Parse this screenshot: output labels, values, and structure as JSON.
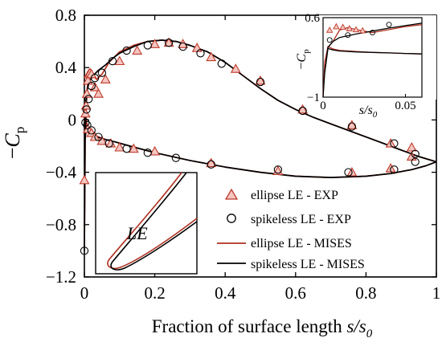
{
  "chart_data": {
    "type": "scatter",
    "xlabel": "Fraction of surface length s/s0",
    "xlabel_parts": [
      "Fraction of surface length ",
      "s/s",
      "0"
    ],
    "ylabel": "-Cp",
    "ylabel_parts": [
      "−",
      "C",
      "p"
    ],
    "xlim": [
      0,
      1
    ],
    "ylim": [
      -1.2,
      0.8
    ],
    "xticks": [
      "0",
      "0.2",
      "0.4",
      "0.6",
      "0.8",
      "1"
    ],
    "yticks": [
      "0.8",
      "0.4",
      "0",
      "-0.4",
      "-0.8",
      "-1.2"
    ],
    "legend_position": "lower-right",
    "series": [
      {
        "name": "ellipse LE - EXP",
        "marker": "triangle",
        "color": "#c0392b",
        "x": [
          0.0,
          0.003,
          0.005,
          0.007,
          0.01,
          0.012,
          0.016,
          0.02,
          0.03,
          0.04,
          0.06,
          0.1,
          0.15,
          0.2,
          0.24,
          0.28,
          0.32,
          0.36,
          0.43,
          0.5,
          0.62,
          0.76,
          0.87,
          0.93,
          0.01,
          0.02,
          0.03,
          0.05,
          0.075,
          0.1,
          0.14,
          0.2,
          0.36,
          0.55,
          0.76,
          0.87,
          0.93
        ],
        "y": [
          -0.46,
          0.05,
          0.11,
          0.2,
          0.3,
          0.35,
          0.36,
          0.35,
          0.25,
          0.2,
          0.31,
          0.45,
          0.53,
          0.58,
          0.59,
          0.58,
          0.55,
          0.48,
          0.39,
          0.3,
          0.08,
          -0.04,
          -0.18,
          -0.21,
          -0.07,
          -0.1,
          -0.13,
          -0.16,
          -0.18,
          -0.21,
          -0.22,
          -0.24,
          -0.33,
          -0.39,
          -0.4,
          -0.37,
          -0.28
        ]
      },
      {
        "name": "spikeless LE - EXP",
        "marker": "circle",
        "color": "#000000",
        "x": [
          0.0,
          0.003,
          0.006,
          0.012,
          0.02,
          0.03,
          0.05,
          0.08,
          0.12,
          0.18,
          0.24,
          0.28,
          0.33,
          0.39,
          0.5,
          0.62,
          0.76,
          0.88,
          0.94,
          0.008,
          0.02,
          0.04,
          0.07,
          0.12,
          0.18,
          0.26,
          0.36,
          0.55,
          0.75,
          0.88,
          0.94
        ],
        "y": [
          -1.0,
          -0.02,
          0.08,
          0.16,
          0.26,
          0.32,
          0.36,
          0.45,
          0.53,
          0.57,
          0.59,
          0.56,
          0.51,
          0.43,
          0.29,
          0.07,
          -0.05,
          -0.18,
          -0.26,
          -0.04,
          -0.08,
          -0.13,
          -0.18,
          -0.22,
          -0.25,
          -0.29,
          -0.34,
          -0.38,
          -0.4,
          -0.38,
          -0.32
        ]
      },
      {
        "name": "ellipse LE - MISES",
        "marker": "line",
        "color": "#b03020",
        "upper": {
          "x": [
            0,
            0.003,
            0.007,
            0.012,
            0.018,
            0.025,
            0.035,
            0.05,
            0.07,
            0.1,
            0.14,
            0.18,
            0.22,
            0.26,
            0.3,
            0.35,
            0.4,
            0.45,
            0.5,
            0.55,
            0.6,
            0.65,
            0.7,
            0.75,
            0.8,
            0.85,
            0.9,
            0.95,
            1.0
          ],
          "y": [
            -1.0,
            0.05,
            0.22,
            0.33,
            0.36,
            0.34,
            0.31,
            0.35,
            0.44,
            0.52,
            0.57,
            0.6,
            0.61,
            0.6,
            0.57,
            0.52,
            0.44,
            0.34,
            0.24,
            0.15,
            0.08,
            0.02,
            -0.03,
            -0.08,
            -0.13,
            -0.18,
            -0.23,
            -0.28,
            -0.32
          ]
        },
        "lower": {
          "x": [
            0.003,
            0.008,
            0.015,
            0.025,
            0.04,
            0.06,
            0.09,
            0.13,
            0.2,
            0.3,
            0.4,
            0.5,
            0.6,
            0.7,
            0.8,
            0.87,
            0.93,
            0.97,
            1.0
          ],
          "y": [
            0.05,
            -0.05,
            -0.09,
            -0.11,
            -0.13,
            -0.15,
            -0.17,
            -0.2,
            -0.25,
            -0.31,
            -0.36,
            -0.4,
            -0.43,
            -0.44,
            -0.43,
            -0.41,
            -0.38,
            -0.35,
            -0.32
          ]
        }
      },
      {
        "name": "spikeless LE - MISES",
        "marker": "line",
        "color": "#000000",
        "upper": {
          "x": [
            0,
            0.002,
            0.005,
            0.009,
            0.015,
            0.025,
            0.04,
            0.06,
            0.08,
            0.1,
            0.14,
            0.18,
            0.22,
            0.26,
            0.3,
            0.35,
            0.4,
            0.45,
            0.5,
            0.55,
            0.6,
            0.65,
            0.7,
            0.75,
            0.8,
            0.85,
            0.9,
            0.95,
            1.0
          ],
          "y": [
            -1.0,
            -0.15,
            0.12,
            0.24,
            0.3,
            0.34,
            0.38,
            0.42,
            0.47,
            0.51,
            0.56,
            0.6,
            0.61,
            0.6,
            0.57,
            0.52,
            0.44,
            0.34,
            0.24,
            0.15,
            0.08,
            0.02,
            -0.03,
            -0.08,
            -0.13,
            -0.18,
            -0.23,
            -0.28,
            -0.32
          ]
        },
        "lower": {
          "x": [
            0.002,
            0.006,
            0.012,
            0.02,
            0.035,
            0.06,
            0.09,
            0.13,
            0.2,
            0.3,
            0.4,
            0.5,
            0.6,
            0.7,
            0.8,
            0.87,
            0.93,
            0.97,
            1.0
          ],
          "y": [
            -0.15,
            -0.05,
            -0.08,
            -0.1,
            -0.13,
            -0.15,
            -0.17,
            -0.2,
            -0.25,
            -0.31,
            -0.36,
            -0.4,
            -0.43,
            -0.44,
            -0.43,
            -0.41,
            -0.38,
            -0.35,
            -0.32
          ]
        }
      }
    ],
    "inset_top_right": {
      "xlabel_parts": [
        "s/s",
        "0"
      ],
      "ylabel_parts": [
        "−",
        "C",
        "p"
      ],
      "xlim": [
        0,
        0.06
      ],
      "ylim": [
        -1,
        0.6
      ],
      "xticks": [
        "0",
        "0.05"
      ],
      "yticks": [
        "0.6",
        "-1"
      ],
      "ellipse_exp": {
        "x": [
          0.004,
          0.008,
          0.012,
          0.016,
          0.02,
          0.024
        ],
        "y": [
          0.35,
          0.42,
          0.41,
          0.38,
          0.36,
          0.34
        ]
      },
      "spikeless_exp": {
        "x": [
          0.004,
          0.015,
          0.03,
          0.04
        ],
        "y": [
          0.15,
          0.25,
          0.3,
          0.46
        ]
      },
      "ellipse_upper": {
        "x": [
          0,
          0.001,
          0.003,
          0.006,
          0.01,
          0.015,
          0.02,
          0.03,
          0.04,
          0.05,
          0.06
        ],
        "y": [
          -1,
          -0.3,
          0.0,
          0.12,
          0.35,
          0.4,
          0.36,
          0.3,
          0.36,
          0.42,
          0.46
        ]
      },
      "ellipse_lower": {
        "x": [
          0.001,
          0.003,
          0.006,
          0.01,
          0.02,
          0.03,
          0.04,
          0.05,
          0.06
        ],
        "y": [
          -0.3,
          0.02,
          -0.03,
          -0.06,
          -0.08,
          -0.1,
          -0.11,
          -0.12,
          -0.13
        ]
      },
      "spikeless_upper": {
        "x": [
          0,
          0.001,
          0.003,
          0.006,
          0.01,
          0.02,
          0.03,
          0.04,
          0.05,
          0.06
        ],
        "y": [
          -1,
          -0.5,
          0.0,
          0.12,
          0.2,
          0.27,
          0.33,
          0.39,
          0.44,
          0.49
        ]
      },
      "spikeless_lower": {
        "x": [
          0.001,
          0.003,
          0.006,
          0.01,
          0.02,
          0.03,
          0.04,
          0.05,
          0.06
        ],
        "y": [
          -0.5,
          -0.02,
          -0.05,
          -0.07,
          -0.09,
          -0.1,
          -0.11,
          -0.12,
          -0.13
        ]
      }
    },
    "inset_bottom_left": {
      "label": "LE"
    }
  }
}
